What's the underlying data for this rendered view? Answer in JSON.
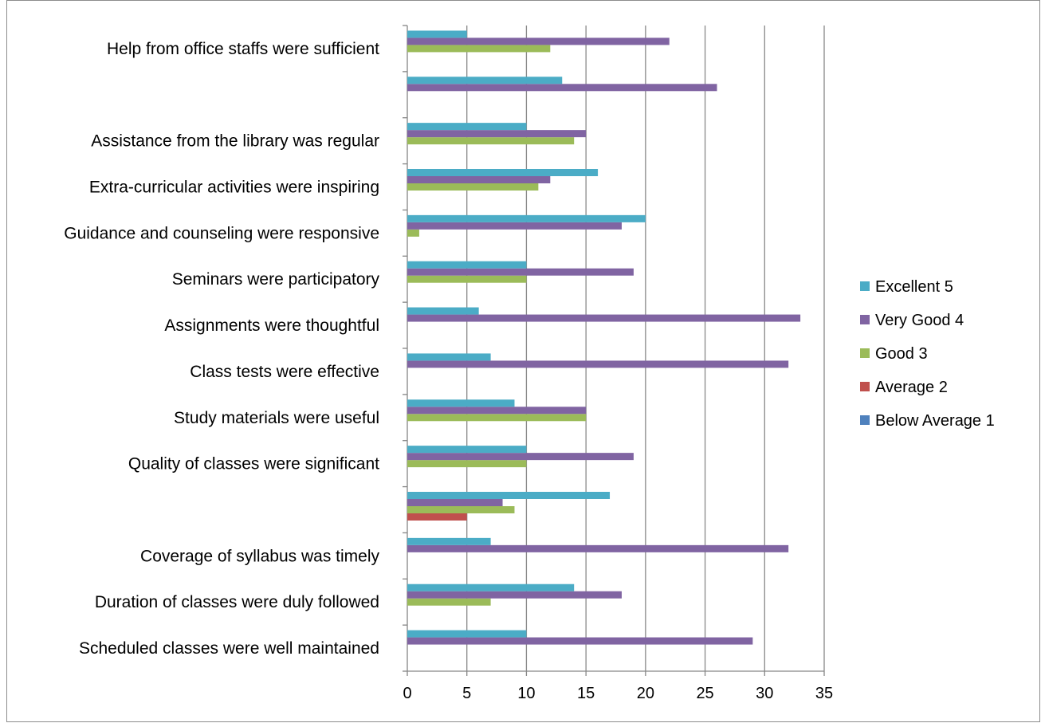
{
  "chart_data": {
    "type": "bar",
    "orientation": "horizontal",
    "categories": [
      "Scheduled classes were well maintained",
      "Duration of classes were duly followed",
      "Coverage of syllabus was timely",
      "",
      "Quality of classes were significant",
      "Study materials were useful",
      "Class tests were effective",
      "Assignments were thoughtful",
      "Seminars were participatory",
      "Guidance and counseling were responsive",
      "Extra-curricular activities were inspiring",
      "Assistance from the library was regular",
      "",
      "Help from office staffs were sufficient"
    ],
    "series": [
      {
        "name": "Below Average 1",
        "color": "#4F81BD",
        "values": [
          0,
          0,
          0,
          0,
          0,
          0,
          0,
          0,
          0,
          0,
          0,
          0,
          0,
          0
        ]
      },
      {
        "name": "Average 2",
        "color": "#C0504D",
        "values": [
          0,
          0,
          0,
          5,
          0,
          0,
          0,
          0,
          0,
          0,
          0,
          0,
          0,
          0
        ]
      },
      {
        "name": "Good 3",
        "color": "#9BBB59",
        "values": [
          0,
          7,
          0,
          9,
          10,
          15,
          0,
          0,
          10,
          1,
          11,
          14,
          0,
          12
        ]
      },
      {
        "name": "Very Good 4",
        "color": "#8064A2",
        "values": [
          29,
          18,
          32,
          8,
          19,
          15,
          32,
          33,
          19,
          18,
          12,
          15,
          26,
          22
        ]
      },
      {
        "name": "Excellent 5",
        "color": "#4BACC6",
        "values": [
          10,
          14,
          7,
          17,
          10,
          9,
          7,
          6,
          10,
          20,
          16,
          10,
          13,
          5
        ]
      }
    ],
    "xlim": [
      0,
      35
    ],
    "x_ticks": [
      "0",
      "5",
      "10",
      "15",
      "20",
      "25",
      "30",
      "35"
    ],
    "grid": true,
    "legend_position": "right",
    "title": "",
    "xlabel": "",
    "ylabel": ""
  }
}
